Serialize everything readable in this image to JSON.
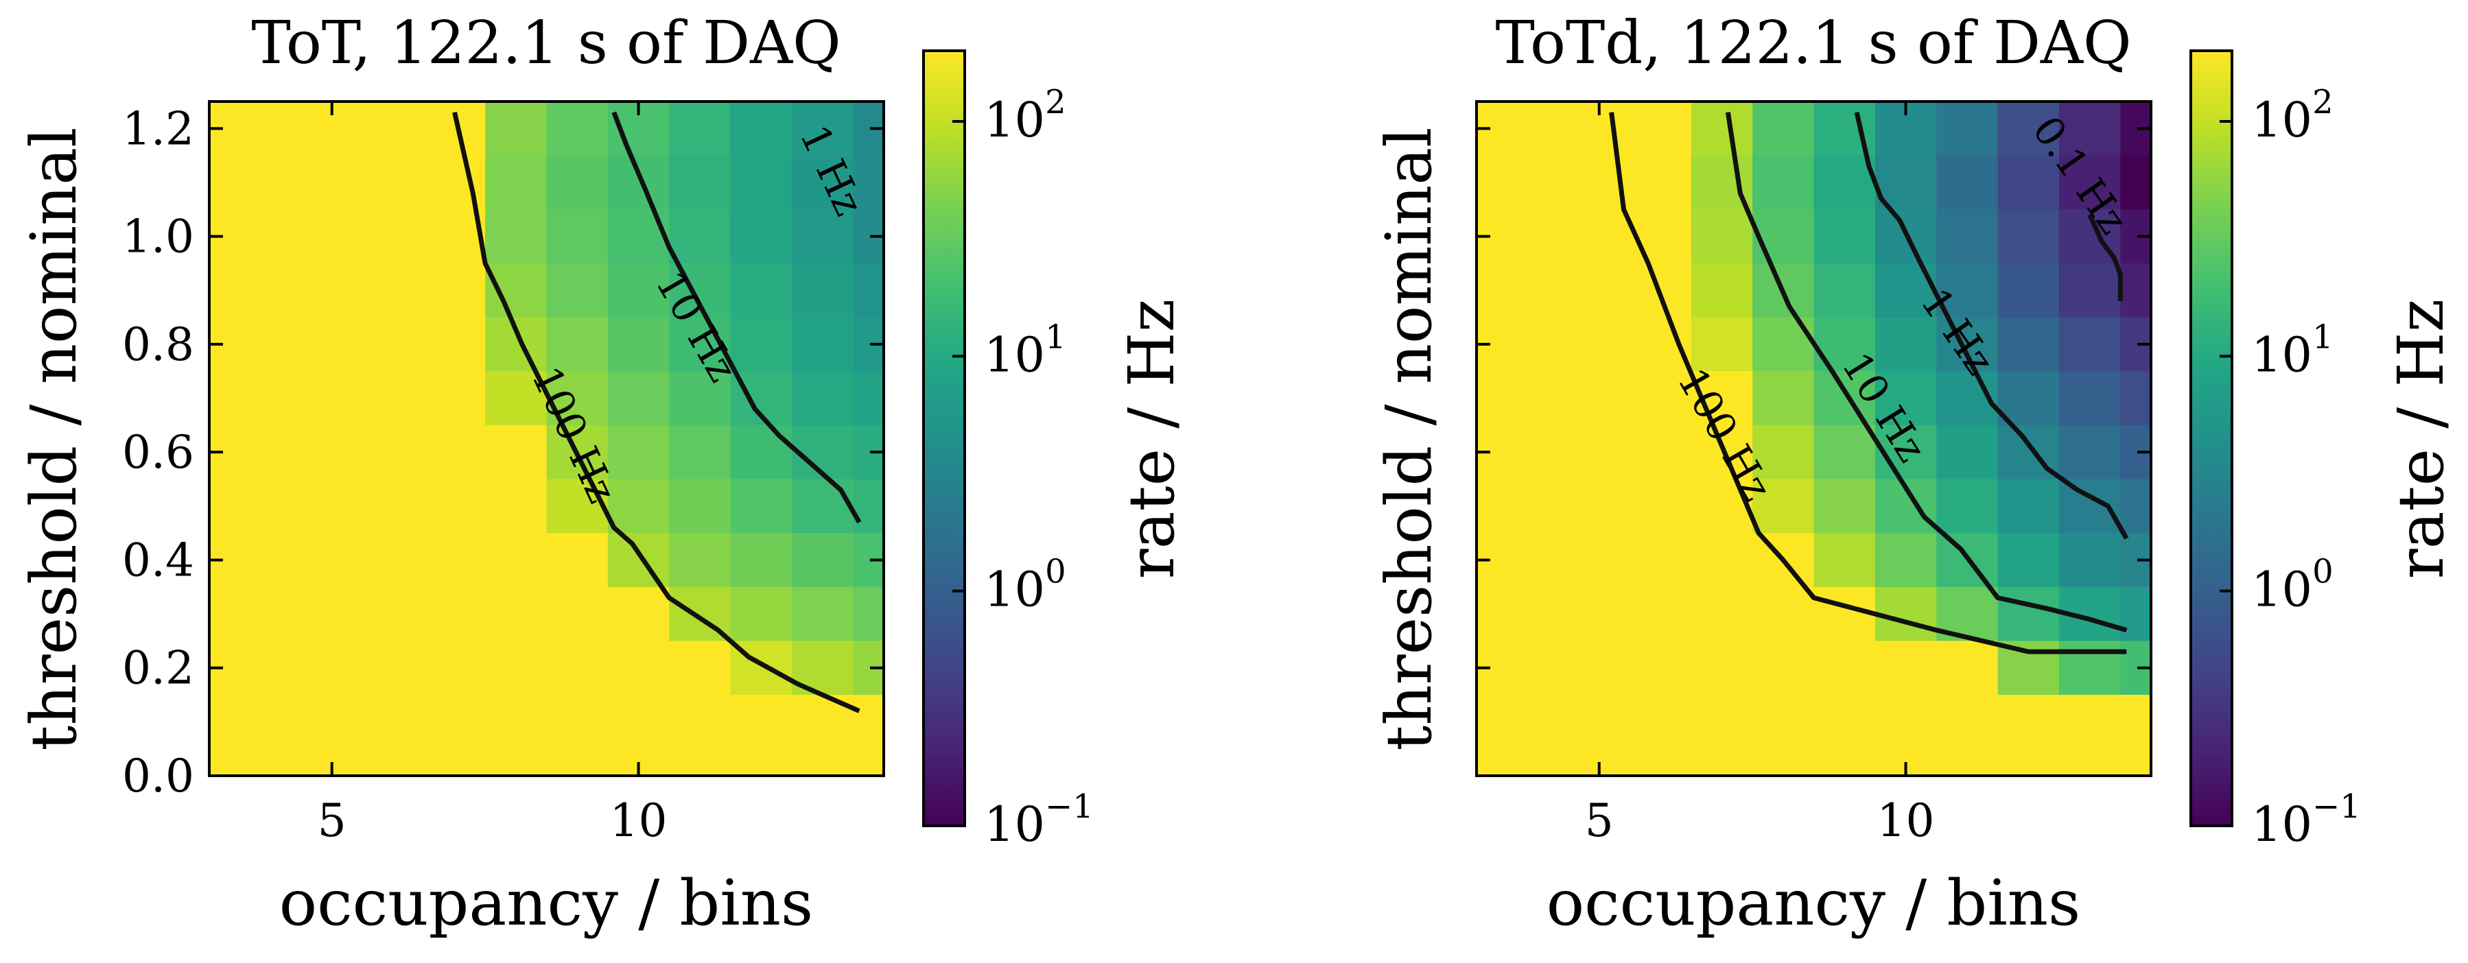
{
  "chart_data": [
    {
      "type": "heatmap",
      "title": "ToT, 122.1 s of DAQ",
      "xlabel": "occupancy / bins",
      "ylabel": "threshold / nominal",
      "colorbar_label": "rate / Hz",
      "colormap": "viridis",
      "color_scale": "log",
      "clim": [
        0.1,
        200
      ],
      "xlim": [
        3.0,
        14.0
      ],
      "ylim": [
        0.0,
        1.25
      ],
      "x_ticks": [
        5,
        10
      ],
      "x_tick_labels": [
        "5",
        "10"
      ],
      "y_ticks": [
        0.0,
        0.2,
        0.4,
        0.6,
        0.8,
        1.0,
        1.2
      ],
      "y_tick_labels": [
        "0.0",
        "0.2",
        "0.4",
        "0.6",
        "0.8",
        "1.0",
        "1.2"
      ],
      "colorbar_ticks": [
        {
          "base": "10",
          "exp": "2",
          "value": 100
        },
        {
          "base": "10",
          "exp": "1",
          "value": 10
        },
        {
          "base": "10",
          "exp": "0",
          "value": 1
        },
        {
          "base": "10",
          "exp": "−1",
          "value": 0.1
        }
      ],
      "contours": [
        {
          "label": "100 Hz",
          "level": 100,
          "points": [
            [
              7.0,
              1.23
            ],
            [
              7.3,
              1.08
            ],
            [
              7.5,
              0.95
            ],
            [
              7.8,
              0.88
            ],
            [
              8.1,
              0.8
            ],
            [
              9.6,
              0.46
            ],
            [
              9.9,
              0.43
            ],
            [
              10.5,
              0.33
            ],
            [
              11.3,
              0.27
            ],
            [
              11.8,
              0.22
            ],
            [
              12.6,
              0.17
            ],
            [
              13.6,
              0.12
            ]
          ]
        },
        {
          "label": "10 Hz",
          "level": 10,
          "points": [
            [
              9.6,
              1.23
            ],
            [
              9.8,
              1.17
            ],
            [
              10.1,
              1.09
            ],
            [
              10.5,
              0.98
            ],
            [
              11.9,
              0.68
            ],
            [
              12.3,
              0.63
            ],
            [
              12.8,
              0.58
            ],
            [
              13.3,
              0.53
            ],
            [
              13.6,
              0.47
            ]
          ]
        },
        {
          "label": "1 Hz",
          "level": 1,
          "points": []
        }
      ],
      "grid": [
        {
          "threshold": 1.2,
          "rates": [
            200,
            200,
            200,
            200,
            50,
            30,
            22,
            14,
            9,
            6,
            3.5
          ]
        },
        {
          "threshold": 1.1,
          "rates": [
            200,
            200,
            200,
            200,
            45,
            28,
            20,
            13,
            8.5,
            5.5,
            3.8
          ]
        },
        {
          "threshold": 1.0,
          "rates": [
            200,
            200,
            200,
            200,
            45,
            30,
            21,
            14,
            9,
            6,
            4
          ]
        },
        {
          "threshold": 0.9,
          "rates": [
            200,
            200,
            200,
            200,
            55,
            35,
            23,
            16,
            11,
            7,
            5
          ]
        },
        {
          "threshold": 0.8,
          "rates": [
            200,
            200,
            200,
            200,
            70,
            45,
            28,
            18,
            12,
            8,
            6
          ]
        },
        {
          "threshold": 0.7,
          "rates": [
            200,
            200,
            200,
            200,
            100,
            55,
            35,
            23,
            14,
            10,
            8
          ]
        },
        {
          "threshold": 0.6,
          "rates": [
            200,
            200,
            200,
            200,
            200,
            70,
            45,
            30,
            18,
            13,
            11
          ]
        },
        {
          "threshold": 0.5,
          "rates": [
            200,
            200,
            200,
            200,
            200,
            100,
            55,
            38,
            25,
            17,
            14
          ]
        },
        {
          "threshold": 0.4,
          "rates": [
            200,
            200,
            200,
            200,
            200,
            200,
            75,
            50,
            38,
            28,
            22
          ]
        },
        {
          "threshold": 0.3,
          "rates": [
            200,
            200,
            200,
            200,
            200,
            200,
            200,
            80,
            60,
            45,
            35
          ]
        },
        {
          "threshold": 0.2,
          "rates": [
            200,
            200,
            200,
            200,
            200,
            200,
            200,
            200,
            120,
            80,
            60
          ]
        },
        {
          "threshold": 0.1,
          "rates": [
            200,
            200,
            200,
            200,
            200,
            200,
            200,
            200,
            200,
            200,
            200
          ]
        },
        {
          "threshold": 0.0,
          "rates": [
            200,
            200,
            200,
            200,
            200,
            200,
            200,
            200,
            200,
            200,
            200
          ]
        }
      ]
    },
    {
      "type": "heatmap",
      "title": "ToTd, 122.1 s of DAQ",
      "xlabel": "occupancy / bins",
      "ylabel": "threshold / nominal",
      "colorbar_label": "rate / Hz",
      "colormap": "viridis",
      "color_scale": "log",
      "clim": [
        0.1,
        200
      ],
      "xlim": [
        3.0,
        14.0
      ],
      "ylim": [
        0.0,
        1.25
      ],
      "x_ticks": [
        5,
        10
      ],
      "x_tick_labels": [
        "5",
        "10"
      ],
      "y_ticks": [
        0.0,
        0.2,
        0.4,
        0.6,
        0.8,
        1.0,
        1.2
      ],
      "y_tick_labels": [],
      "colorbar_ticks": [
        {
          "base": "10",
          "exp": "2",
          "value": 100
        },
        {
          "base": "10",
          "exp": "1",
          "value": 10
        },
        {
          "base": "10",
          "exp": "0",
          "value": 1
        },
        {
          "base": "10",
          "exp": "−1",
          "value": 0.1
        }
      ],
      "contours": [
        {
          "label": "100 Hz",
          "level": 100,
          "points": [
            [
              5.2,
              1.23
            ],
            [
              5.4,
              1.05
            ],
            [
              5.8,
              0.95
            ],
            [
              6.3,
              0.8
            ],
            [
              7.6,
              0.45
            ],
            [
              8.0,
              0.4
            ],
            [
              8.5,
              0.33
            ],
            [
              9.5,
              0.3
            ],
            [
              10.5,
              0.27
            ],
            [
              12.0,
              0.23
            ],
            [
              13.6,
              0.23
            ]
          ]
        },
        {
          "label": "10 Hz",
          "level": 10,
          "points": [
            [
              7.1,
              1.23
            ],
            [
              7.3,
              1.08
            ],
            [
              7.6,
              1.0
            ],
            [
              8.1,
              0.87
            ],
            [
              8.8,
              0.75
            ],
            [
              10.3,
              0.48
            ],
            [
              10.9,
              0.42
            ],
            [
              11.5,
              0.33
            ],
            [
              12.3,
              0.31
            ],
            [
              13.0,
              0.29
            ],
            [
              13.6,
              0.27
            ]
          ]
        },
        {
          "label": "1 Hz",
          "level": 1,
          "points": [
            [
              9.2,
              1.23
            ],
            [
              9.4,
              1.13
            ],
            [
              9.6,
              1.07
            ],
            [
              9.9,
              1.03
            ],
            [
              10.2,
              0.96
            ],
            [
              11.4,
              0.69
            ],
            [
              11.9,
              0.63
            ],
            [
              12.3,
              0.57
            ],
            [
              12.8,
              0.53
            ],
            [
              13.3,
              0.5
            ],
            [
              13.6,
              0.44
            ]
          ]
        },
        {
          "label": "0.1 Hz",
          "level": 0.1,
          "points": [
            [
              13.0,
              1.04
            ],
            [
              13.2,
              0.99
            ],
            [
              13.4,
              0.96
            ],
            [
              13.5,
              0.93
            ],
            [
              13.5,
              0.88
            ]
          ]
        }
      ],
      "grid": [
        {
          "threshold": 1.2,
          "rates": [
            200,
            200,
            200,
            80,
            25,
            12,
            4,
            2,
            0.6,
            0.25,
            0.12
          ]
        },
        {
          "threshold": 1.1,
          "rates": [
            200,
            200,
            200,
            70,
            22,
            10,
            3.5,
            1.5,
            0.5,
            0.2,
            0.1
          ]
        },
        {
          "threshold": 1.0,
          "rates": [
            200,
            200,
            200,
            75,
            25,
            11,
            4,
            1.8,
            0.6,
            0.3,
            0.15
          ]
        },
        {
          "threshold": 0.9,
          "rates": [
            200,
            200,
            200,
            90,
            30,
            14,
            5,
            2.2,
            0.8,
            0.35,
            0.2
          ]
        },
        {
          "threshold": 0.8,
          "rates": [
            200,
            200,
            200,
            120,
            40,
            18,
            7,
            3,
            1.2,
            0.6,
            0.35
          ]
        },
        {
          "threshold": 0.7,
          "rates": [
            200,
            200,
            200,
            200,
            55,
            25,
            10,
            5,
            2,
            1,
            0.6
          ]
        },
        {
          "threshold": 0.6,
          "rates": [
            200,
            200,
            200,
            200,
            80,
            35,
            15,
            7,
            3,
            1.6,
            1
          ]
        },
        {
          "threshold": 0.5,
          "rates": [
            200,
            200,
            200,
            200,
            110,
            50,
            22,
            11,
            5,
            2.5,
            1.8
          ]
        },
        {
          "threshold": 0.4,
          "rates": [
            200,
            200,
            200,
            200,
            200,
            80,
            35,
            17,
            8,
            4,
            3
          ]
        },
        {
          "threshold": 0.3,
          "rates": [
            200,
            200,
            200,
            200,
            200,
            200,
            70,
            35,
            15,
            8,
            6
          ]
        },
        {
          "threshold": 0.2,
          "rates": [
            200,
            200,
            200,
            200,
            200,
            200,
            200,
            200,
            50,
            25,
            20
          ]
        },
        {
          "threshold": 0.1,
          "rates": [
            200,
            200,
            200,
            200,
            200,
            200,
            200,
            200,
            200,
            200,
            200
          ]
        },
        {
          "threshold": 0.0,
          "rates": [
            200,
            200,
            200,
            200,
            200,
            200,
            200,
            200,
            200,
            200,
            200
          ]
        }
      ]
    }
  ]
}
